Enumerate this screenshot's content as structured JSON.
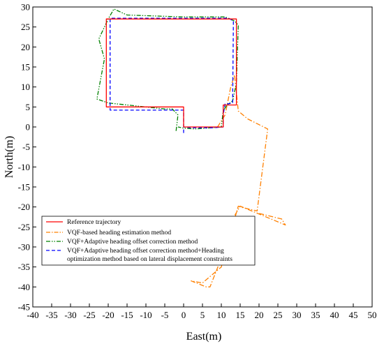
{
  "chart_data": {
    "type": "line",
    "xlabel": "East(m)",
    "ylabel": "North(m)",
    "xlim": [
      -40,
      50
    ],
    "ylim": [
      -45,
      30
    ],
    "x_ticks": [
      -40,
      -35,
      -30,
      -25,
      -20,
      -15,
      -10,
      -5,
      0,
      5,
      10,
      15,
      20,
      25,
      30,
      35,
      40,
      45,
      50
    ],
    "y_ticks": [
      -45,
      -40,
      -35,
      -30,
      -25,
      -20,
      -15,
      -10,
      -5,
      0,
      5,
      10,
      15,
      20,
      25,
      30
    ],
    "grid": false,
    "legend_position": "lower-left",
    "series": [
      {
        "name": "Reference trajectory",
        "color": "#ff0000",
        "dash": "solid",
        "points": [
          [
            0,
            0
          ],
          [
            10.5,
            0
          ],
          [
            10.5,
            5.5
          ],
          [
            14,
            5.5
          ],
          [
            14,
            27
          ],
          [
            -20.5,
            27
          ],
          [
            -20.5,
            5
          ],
          [
            0,
            5
          ],
          [
            0,
            0
          ]
        ]
      },
      {
        "name": "VQF-based heading estimation method",
        "color": "#ff8000",
        "dash": "dashdot",
        "points": [
          [
            9,
            0
          ],
          [
            11,
            3
          ],
          [
            12.5,
            10
          ],
          [
            13.5,
            13
          ],
          [
            14.5,
            4
          ],
          [
            17,
            2
          ],
          [
            22.3,
            -0.5
          ],
          [
            19.5,
            -21
          ],
          [
            15,
            -20
          ],
          [
            14.5,
            -19.8
          ],
          [
            12,
            -28
          ],
          [
            7,
            -40
          ],
          [
            6,
            -40
          ],
          [
            2,
            -38.5
          ],
          [
            5,
            -39
          ],
          [
            10,
            -35
          ],
          [
            13,
            -23
          ],
          [
            15,
            -19.8
          ],
          [
            27,
            -24.5
          ],
          [
            26,
            -23
          ],
          [
            19.5,
            -21.5
          ]
        ]
      },
      {
        "name": "VQF+Adaptive heading offset correction method",
        "color": "#008000",
        "dash": "dashdotdot",
        "points": [
          [
            -2,
            -1
          ],
          [
            -1.5,
            3
          ],
          [
            -3,
            4.5
          ],
          [
            -5,
            4.5
          ],
          [
            -20,
            6
          ],
          [
            -23,
            7
          ],
          [
            -22,
            12
          ],
          [
            -21,
            17
          ],
          [
            -22.5,
            22
          ],
          [
            -20,
            27
          ],
          [
            -18.5,
            29.5
          ],
          [
            -15,
            28
          ],
          [
            0,
            27.5
          ],
          [
            11,
            27.5
          ],
          [
            13.5,
            26.5
          ],
          [
            14.5,
            25.5
          ],
          [
            14,
            11
          ],
          [
            13,
            6.5
          ],
          [
            11.5,
            5.5
          ],
          [
            10.5,
            4
          ],
          [
            10,
            0
          ],
          [
            3,
            -0.5
          ],
          [
            0,
            -0.3
          ],
          [
            -1.5,
            0
          ]
        ]
      },
      {
        "name": "VQF+Adaptive heading offset correction method+Heading optimization method based on lateral displacement constraints",
        "color": "#0000ff",
        "dash": "dashed",
        "points": [
          [
            0,
            -1.5
          ],
          [
            0,
            4.2
          ],
          [
            -19.5,
            4.2
          ],
          [
            -19.5,
            27.2
          ],
          [
            12,
            27.2
          ],
          [
            13.2,
            26.5
          ],
          [
            13,
            6
          ],
          [
            12,
            5.8
          ],
          [
            11,
            5.8
          ],
          [
            10.5,
            3
          ],
          [
            10.5,
            0
          ],
          [
            8,
            -0.2
          ],
          [
            2,
            -0.2
          ],
          [
            0,
            0
          ]
        ]
      }
    ]
  },
  "legend": {
    "line1": "Reference trajectory",
    "line2": "VQF-based heading estimation method",
    "line3": "VQF+Adaptive heading offset correction method",
    "line4a": "VQF+Adaptive heading offset correction method+Heading",
    "line4b": "optimization method based on lateral displacement constraints"
  }
}
